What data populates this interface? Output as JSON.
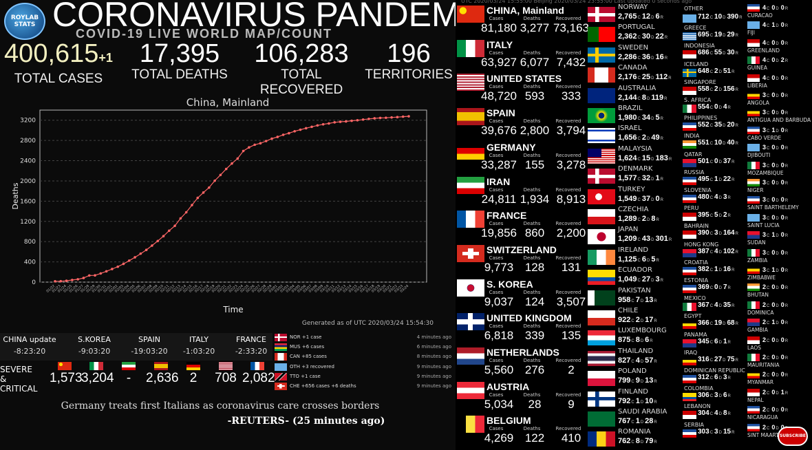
{
  "header": {
    "logo_text": "ROYLAB STATS",
    "title": "CORONAVIRUS PANDEMIC",
    "subtitle": "COVID-19 LIVE WORLD MAP/COUNT"
  },
  "stats": {
    "total_cases": "400,615",
    "total_cases_plus": "+1",
    "total_cases_label": "TOTAL CASES",
    "total_deaths": "17,395",
    "total_deaths_label": "TOTAL DEATHS",
    "total_recovered": "106,283",
    "total_recovered_label": "TOTAL RECOVERED",
    "territories": "196",
    "territories_label": "TERRITORIES"
  },
  "chart_data": {
    "type": "line",
    "title": "China, Mainland",
    "xlabel": "Time",
    "ylabel": "Deaths",
    "ylim": [
      0,
      3400
    ],
    "yticks": [
      0,
      400,
      800,
      1200,
      1600,
      2000,
      2400,
      2800,
      3200
    ],
    "x": [
      "01/22",
      "01/23",
      "01/24",
      "01/25",
      "01/26",
      "01/27",
      "01/28",
      "01/29",
      "01/30",
      "01/31",
      "02/01",
      "02/02",
      "02/03",
      "02/04",
      "02/05",
      "02/06",
      "02/07",
      "02/08",
      "02/09",
      "02/10",
      "02/11",
      "02/12",
      "02/13",
      "02/14",
      "02/15",
      "02/16",
      "02/17",
      "02/18",
      "02/19",
      "02/20",
      "02/21",
      "02/22",
      "02/23",
      "02/24",
      "02/25",
      "02/26",
      "02/27",
      "02/28",
      "02/29",
      "03/01",
      "03/02",
      "03/03",
      "03/04",
      "03/05",
      "03/06",
      "03/07",
      "03/08",
      "03/09",
      "03/10",
      "03/11",
      "03/12",
      "03/13",
      "03/14",
      "03/15",
      "03/16",
      "03/17",
      "03/18",
      "03/19",
      "03/20",
      "03/21",
      "03/22",
      "03/23",
      "03/24"
    ],
    "series": [
      {
        "values": [
          17,
          18,
          26,
          42,
          56,
          82,
          131,
          133,
          171,
          213,
          259,
          304,
          361,
          425,
          490,
          562,
          636,
          722,
          812,
          908,
          1016,
          1113,
          1259,
          1380,
          1523,
          1665,
          1770,
          1868,
          2004,
          2118,
          2236,
          2345,
          2442,
          2592,
          2663,
          2715,
          2744,
          2788,
          2835,
          2870,
          2912,
          2943,
          2981,
          3012,
          3042,
          3070,
          3097,
          3119,
          3136,
          3158,
          3169,
          3176,
          3189,
          3199,
          3213,
          3226,
          3237,
          3245,
          3248,
          3255,
          3261,
          3270,
          3277
        ]
      }
    ],
    "grid": true,
    "color": "#ff6666",
    "note": "Generated as of UTC 2020/03/24 15:54:30"
  },
  "updates": [
    {
      "country": "CHINA update",
      "time": "-8:23:20"
    },
    {
      "country": "S.KOREA",
      "time": "-9:03:20"
    },
    {
      "country": "SPAIN",
      "time": "-19:03:20"
    },
    {
      "country": "ITALY",
      "time": "-1:03:20"
    },
    {
      "country": "FRANCE",
      "time": "-2:33:20"
    }
  ],
  "news": [
    {
      "msg": "NOR +1 case",
      "ago": "4 minutes ago"
    },
    {
      "msg": "MUS +6 cases",
      "ago": "6 minutes ago"
    },
    {
      "msg": "CAN +85 cases",
      "ago": "8 minutes ago"
    },
    {
      "msg": "OTH +3 recovered",
      "ago": "9 minutes ago"
    },
    {
      "msg": "TTO +1 case",
      "ago": "9 minutes ago"
    },
    {
      "msg": "CHE +656 cases +6 deaths",
      "ago": "9 minutes ago"
    }
  ],
  "severe": {
    "label": "SEVERE & CRITICAL",
    "values": [
      "1,573",
      "3,204",
      "-",
      "2,636",
      "2",
      "708",
      "2,082"
    ]
  },
  "headline": "Germany treats first Italians as coronavirus care crosses borders",
  "source": "-REUTERS- (25 minutes ago)",
  "topbar": "UTC 2020/03/24 15:55:00     Beijing 2020/03/24 23:55:00     Last updated 0 seconds ago",
  "big_labels": {
    "cases": "Cases",
    "deaths": "Deaths",
    "recovered": "Recovered"
  },
  "big_countries": [
    {
      "name": "CHINA, Mainland",
      "cases": "81,180",
      "deaths": "3,277",
      "recovered": "73,163"
    },
    {
      "name": "ITALY",
      "cases": "63,927",
      "deaths": "6,077",
      "recovered": "7,432"
    },
    {
      "name": "UNITED STATES",
      "cases": "48,720",
      "deaths": "593",
      "recovered": "333"
    },
    {
      "name": "SPAIN",
      "cases": "39,676",
      "deaths": "2,800",
      "recovered": "3,794"
    },
    {
      "name": "GERMANY",
      "cases": "33,287",
      "deaths": "155",
      "recovered": "3,278"
    },
    {
      "name": "IRAN",
      "cases": "24,811",
      "deaths": "1,934",
      "recovered": "8,913"
    },
    {
      "name": "FRANCE",
      "cases": "19,856",
      "deaths": "860",
      "recovered": "2,200"
    },
    {
      "name": "SWITZERLAND",
      "cases": "9,773",
      "deaths": "128",
      "recovered": "131"
    },
    {
      "name": "S. KOREA",
      "cases": "9,037",
      "deaths": "124",
      "recovered": "3,507"
    },
    {
      "name": "UNITED KINGDOM",
      "cases": "6,818",
      "deaths": "339",
      "recovered": "135"
    },
    {
      "name": "NETHERLANDS",
      "cases": "5,560",
      "deaths": "276",
      "recovered": "2"
    },
    {
      "name": "AUSTRIA",
      "cases": "5,034",
      "deaths": "28",
      "recovered": "9"
    },
    {
      "name": "BELGIUM",
      "cases": "4,269",
      "deaths": "122",
      "recovered": "410"
    }
  ],
  "mid_countries": [
    {
      "name": "NORWAY",
      "c": "2,765",
      "d": "12",
      "r": "6"
    },
    {
      "name": "PORTUGAL",
      "c": "2,362",
      "d": "30",
      "r": "22"
    },
    {
      "name": "SWEDEN",
      "c": "2,286",
      "d": "36",
      "r": "16"
    },
    {
      "name": "CANADA",
      "c": "2,176",
      "d": "25",
      "r": "112"
    },
    {
      "name": "AUSTRALIA",
      "c": "2,144",
      "d": "8",
      "r": "119"
    },
    {
      "name": "BRAZIL",
      "c": "1,980",
      "d": "34",
      "r": "5"
    },
    {
      "name": "ISRAEL",
      "c": "1,656",
      "d": "2",
      "r": "49"
    },
    {
      "name": "MALAYSIA",
      "c": "1,624",
      "d": "15",
      "r": "183"
    },
    {
      "name": "DENMARK",
      "c": "1,577",
      "d": "32",
      "r": "1"
    },
    {
      "name": "TURKEY",
      "c": "1,549",
      "d": "37",
      "r": "0"
    },
    {
      "name": "CZECHIA",
      "c": "1,289",
      "d": "2",
      "r": "8"
    },
    {
      "name": "JAPAN",
      "c": "1,209",
      "d": "43",
      "r": "301"
    },
    {
      "name": "IRELAND",
      "c": "1,125",
      "d": "6",
      "r": "5"
    },
    {
      "name": "ECUADOR",
      "c": "1,049",
      "d": "27",
      "r": "3"
    },
    {
      "name": "PAKISTAN",
      "c": "958",
      "d": "7",
      "r": "13"
    },
    {
      "name": "CHILE",
      "c": "922",
      "d": "2",
      "r": "17"
    },
    {
      "name": "LUXEMBOURG",
      "c": "875",
      "d": "8",
      "r": "6"
    },
    {
      "name": "THAILAND",
      "c": "827",
      "d": "4",
      "r": "57"
    },
    {
      "name": "POLAND",
      "c": "799",
      "d": "9",
      "r": "13"
    },
    {
      "name": "FINLAND",
      "c": "792",
      "d": "1",
      "r": "10"
    },
    {
      "name": "SAUDI ARABIA",
      "c": "767",
      "d": "1",
      "r": "28"
    },
    {
      "name": "ROMANIA",
      "c": "762",
      "d": "8",
      "r": "79"
    }
  ],
  "small_countries": [
    {
      "name": "OTHER",
      "c": "712",
      "d": "10",
      "r": "390"
    },
    {
      "name": "GREECE",
      "c": "695",
      "d": "19",
      "r": "29"
    },
    {
      "name": "INDONESIA",
      "c": "686",
      "d": "55",
      "r": "30"
    },
    {
      "name": "ICELAND",
      "c": "648",
      "d": "2",
      "r": "51"
    },
    {
      "name": "SINGAPORE",
      "c": "558",
      "d": "2",
      "r": "156"
    },
    {
      "name": "S. AFRICA",
      "c": "554",
      "d": "0",
      "r": "4"
    },
    {
      "name": "PHILIPPINES",
      "c": "552",
      "d": "35",
      "r": "20"
    },
    {
      "name": "INDIA",
      "c": "551",
      "d": "10",
      "r": "40"
    },
    {
      "name": "QATAR",
      "c": "501",
      "d": "0",
      "r": "37"
    },
    {
      "name": "RUSSIA",
      "c": "495",
      "d": "1",
      "r": "22"
    },
    {
      "name": "SLOVENIA",
      "c": "480",
      "d": "4",
      "r": "3"
    },
    {
      "name": "PERU",
      "c": "395",
      "d": "5",
      "r": "2"
    },
    {
      "name": "BAHRAIN",
      "c": "390",
      "d": "3",
      "r": "164"
    },
    {
      "name": "HONG KONG",
      "c": "387",
      "d": "4",
      "r": "102"
    },
    {
      "name": "CROATIA",
      "c": "382",
      "d": "1",
      "r": "16"
    },
    {
      "name": "ESTONIA",
      "c": "369",
      "d": "0",
      "r": "7"
    },
    {
      "name": "MEXICO",
      "c": "367",
      "d": "4",
      "r": "35"
    },
    {
      "name": "EGYPT",
      "c": "366",
      "d": "19",
      "r": "68"
    },
    {
      "name": "PANAMA",
      "c": "345",
      "d": "6",
      "r": "1"
    },
    {
      "name": "IRAQ",
      "c": "316",
      "d": "27",
      "r": "75"
    },
    {
      "name": "DOMINICAN REPUBLIC",
      "c": "312",
      "d": "6",
      "r": "3"
    },
    {
      "name": "COLOMBIA",
      "c": "306",
      "d": "3",
      "r": "6"
    },
    {
      "name": "LEBANON",
      "c": "304",
      "d": "4",
      "r": "8"
    },
    {
      "name": "SERBIA",
      "c": "303",
      "d": "3",
      "r": "15"
    }
  ],
  "xs_countries": [
    {
      "name": "CURACAO",
      "c": "4",
      "d": "0",
      "r": "0"
    },
    {
      "name": "FIJI",
      "c": "4",
      "d": "1",
      "r": "0"
    },
    {
      "name": "GREENLAND",
      "c": "4",
      "d": "0",
      "r": "0"
    },
    {
      "name": "GUINEA",
      "c": "4",
      "d": "0",
      "r": "2"
    },
    {
      "name": "LIBERIA",
      "c": "4",
      "d": "0",
      "r": "0"
    },
    {
      "name": "ANGOLA",
      "c": "3",
      "d": "0",
      "r": "0"
    },
    {
      "name": "ANTIGUA AND BARBUDA",
      "c": "3",
      "d": "0",
      "r": "0"
    },
    {
      "name": "CABO VERDE",
      "c": "3",
      "d": "1",
      "r": "0"
    },
    {
      "name": "DJIBOUTI",
      "c": "3",
      "d": "0",
      "r": "0"
    },
    {
      "name": "MOZAMBIQUE",
      "c": "3",
      "d": "0",
      "r": "0"
    },
    {
      "name": "NIGER",
      "c": "3",
      "d": "0",
      "r": "0"
    },
    {
      "name": "SAINT BARTHELEMY",
      "c": "3",
      "d": "0",
      "r": "0"
    },
    {
      "name": "SAINT LUCIA",
      "c": "3",
      "d": "0",
      "r": "0"
    },
    {
      "name": "SUDAN",
      "c": "3",
      "d": "1",
      "r": "0"
    },
    {
      "name": "ZAMBIA",
      "c": "3",
      "d": "0",
      "r": "0"
    },
    {
      "name": "ZIMBABWE",
      "c": "3",
      "d": "1",
      "r": "0"
    },
    {
      "name": "BHUTAN",
      "c": "2",
      "d": "0",
      "r": "0"
    },
    {
      "name": "DOMINICA",
      "c": "2",
      "d": "0",
      "r": "0"
    },
    {
      "name": "GAMBIA",
      "c": "2",
      "d": "1",
      "r": "0"
    },
    {
      "name": "LAOS",
      "c": "2",
      "d": "0",
      "r": "0"
    },
    {
      "name": "MAURITANIA",
      "c": "2",
      "d": "0",
      "r": "0"
    },
    {
      "name": "MYANMAR",
      "c": "2",
      "d": "0",
      "r": "0"
    },
    {
      "name": "NEPAL",
      "c": "2",
      "d": "0",
      "r": "1"
    },
    {
      "name": "NICARAGUA",
      "c": "2",
      "d": "0",
      "r": "0"
    },
    {
      "name": "SINT MAARTEN",
      "c": "2",
      "d": "0",
      "r": "0"
    }
  ],
  "subscribe_label": "SUBSCRIBE"
}
